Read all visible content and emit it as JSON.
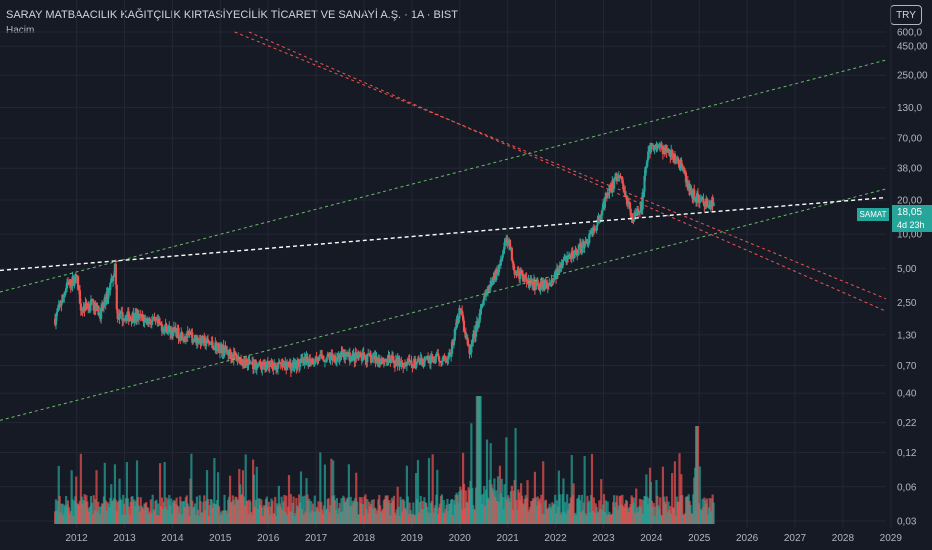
{
  "header": {
    "title": "SARAY MATBAACILIK KAĞITÇILIK KIRTASİYECİLİK TİCARET VE SANAYİ A.Ş. · 1A · BIST",
    "subtitle": "Hacim",
    "currency": "TRY"
  },
  "last_price": {
    "ticker": "SAMAT",
    "value": "18,05",
    "countdown": "4d 23h",
    "color": "#26a69a"
  },
  "colors": {
    "up": "#26a69a",
    "down": "#ef5350",
    "background": "#161a25",
    "grid": "#232734",
    "trend_green": "#66bb6a",
    "trend_red": "#ef5350",
    "trend_white": "#ffffff"
  },
  "chart_data": {
    "type": "candlestick",
    "price_scale": "log",
    "y_ticks": [
      "600,0",
      "450,00",
      "250,00",
      "130,0",
      "70,00",
      "38,00",
      "20,00",
      "10,00",
      "5,00",
      "2,50",
      "1,30",
      "0,70",
      "0,40",
      "0,22",
      "0,12",
      "0,06",
      "0,03"
    ],
    "x_ticks": [
      "2012",
      "2013",
      "2014",
      "2015",
      "2016",
      "2017",
      "2018",
      "2019",
      "2020",
      "2021",
      "2022",
      "2023",
      "2024",
      "2025",
      "2026",
      "2027",
      "2028",
      "2029"
    ],
    "close_path": [
      {
        "t": 2011.55,
        "v": 1.8
      },
      {
        "t": 2011.8,
        "v": 3.5
      },
      {
        "t": 2012.0,
        "v": 4.2
      },
      {
        "t": 2012.1,
        "v": 2.2
      },
      {
        "t": 2012.3,
        "v": 2.5
      },
      {
        "t": 2012.5,
        "v": 2.0
      },
      {
        "t": 2012.65,
        "v": 3.0
      },
      {
        "t": 2012.8,
        "v": 5.2
      },
      {
        "t": 2012.85,
        "v": 1.9
      },
      {
        "t": 2013.2,
        "v": 1.9
      },
      {
        "t": 2013.6,
        "v": 1.7
      },
      {
        "t": 2014.0,
        "v": 1.4
      },
      {
        "t": 2014.5,
        "v": 1.2
      },
      {
        "t": 2015.0,
        "v": 1.0
      },
      {
        "t": 2015.5,
        "v": 0.75
      },
      {
        "t": 2016.0,
        "v": 0.68
      },
      {
        "t": 2016.5,
        "v": 0.7
      },
      {
        "t": 2017.0,
        "v": 0.8
      },
      {
        "t": 2017.5,
        "v": 0.85
      },
      {
        "t": 2018.0,
        "v": 0.82
      },
      {
        "t": 2018.5,
        "v": 0.78
      },
      {
        "t": 2019.0,
        "v": 0.72
      },
      {
        "t": 2019.5,
        "v": 0.8
      },
      {
        "t": 2019.8,
        "v": 0.85
      },
      {
        "t": 2020.0,
        "v": 2.3
      },
      {
        "t": 2020.2,
        "v": 0.9
      },
      {
        "t": 2020.5,
        "v": 2.6
      },
      {
        "t": 2020.8,
        "v": 5.0
      },
      {
        "t": 2021.0,
        "v": 9.5
      },
      {
        "t": 2021.15,
        "v": 4.8
      },
      {
        "t": 2021.5,
        "v": 3.6
      },
      {
        "t": 2021.9,
        "v": 3.7
      },
      {
        "t": 2022.2,
        "v": 6.0
      },
      {
        "t": 2022.6,
        "v": 8.0
      },
      {
        "t": 2022.9,
        "v": 13.0
      },
      {
        "t": 2023.1,
        "v": 25.0
      },
      {
        "t": 2023.35,
        "v": 32.0
      },
      {
        "t": 2023.6,
        "v": 14.0
      },
      {
        "t": 2023.8,
        "v": 18.0
      },
      {
        "t": 2023.9,
        "v": 45.0
      },
      {
        "t": 2024.0,
        "v": 60.0
      },
      {
        "t": 2024.3,
        "v": 55.0
      },
      {
        "t": 2024.6,
        "v": 42.0
      },
      {
        "t": 2024.8,
        "v": 24.0
      },
      {
        "t": 2025.0,
        "v": 20.0
      },
      {
        "t": 2025.3,
        "v": 18.05
      }
    ],
    "trend_lines": [
      {
        "color": "green",
        "points": [
          [
            2010.4,
            3.1
          ],
          [
            2028.9,
            340.0
          ]
        ]
      },
      {
        "color": "green",
        "points": [
          [
            2010.4,
            0.23
          ],
          [
            2028.9,
            25.0
          ]
        ]
      },
      {
        "color": "red",
        "points": [
          [
            2015.3,
            600.0
          ],
          [
            2028.9,
            2.7
          ]
        ]
      },
      {
        "color": "red",
        "points": [
          [
            2015.6,
            600.0
          ],
          [
            2028.9,
            2.1
          ]
        ]
      },
      {
        "color": "white",
        "points": [
          [
            2010.4,
            4.8
          ],
          [
            2028.9,
            21.0
          ]
        ]
      }
    ]
  }
}
